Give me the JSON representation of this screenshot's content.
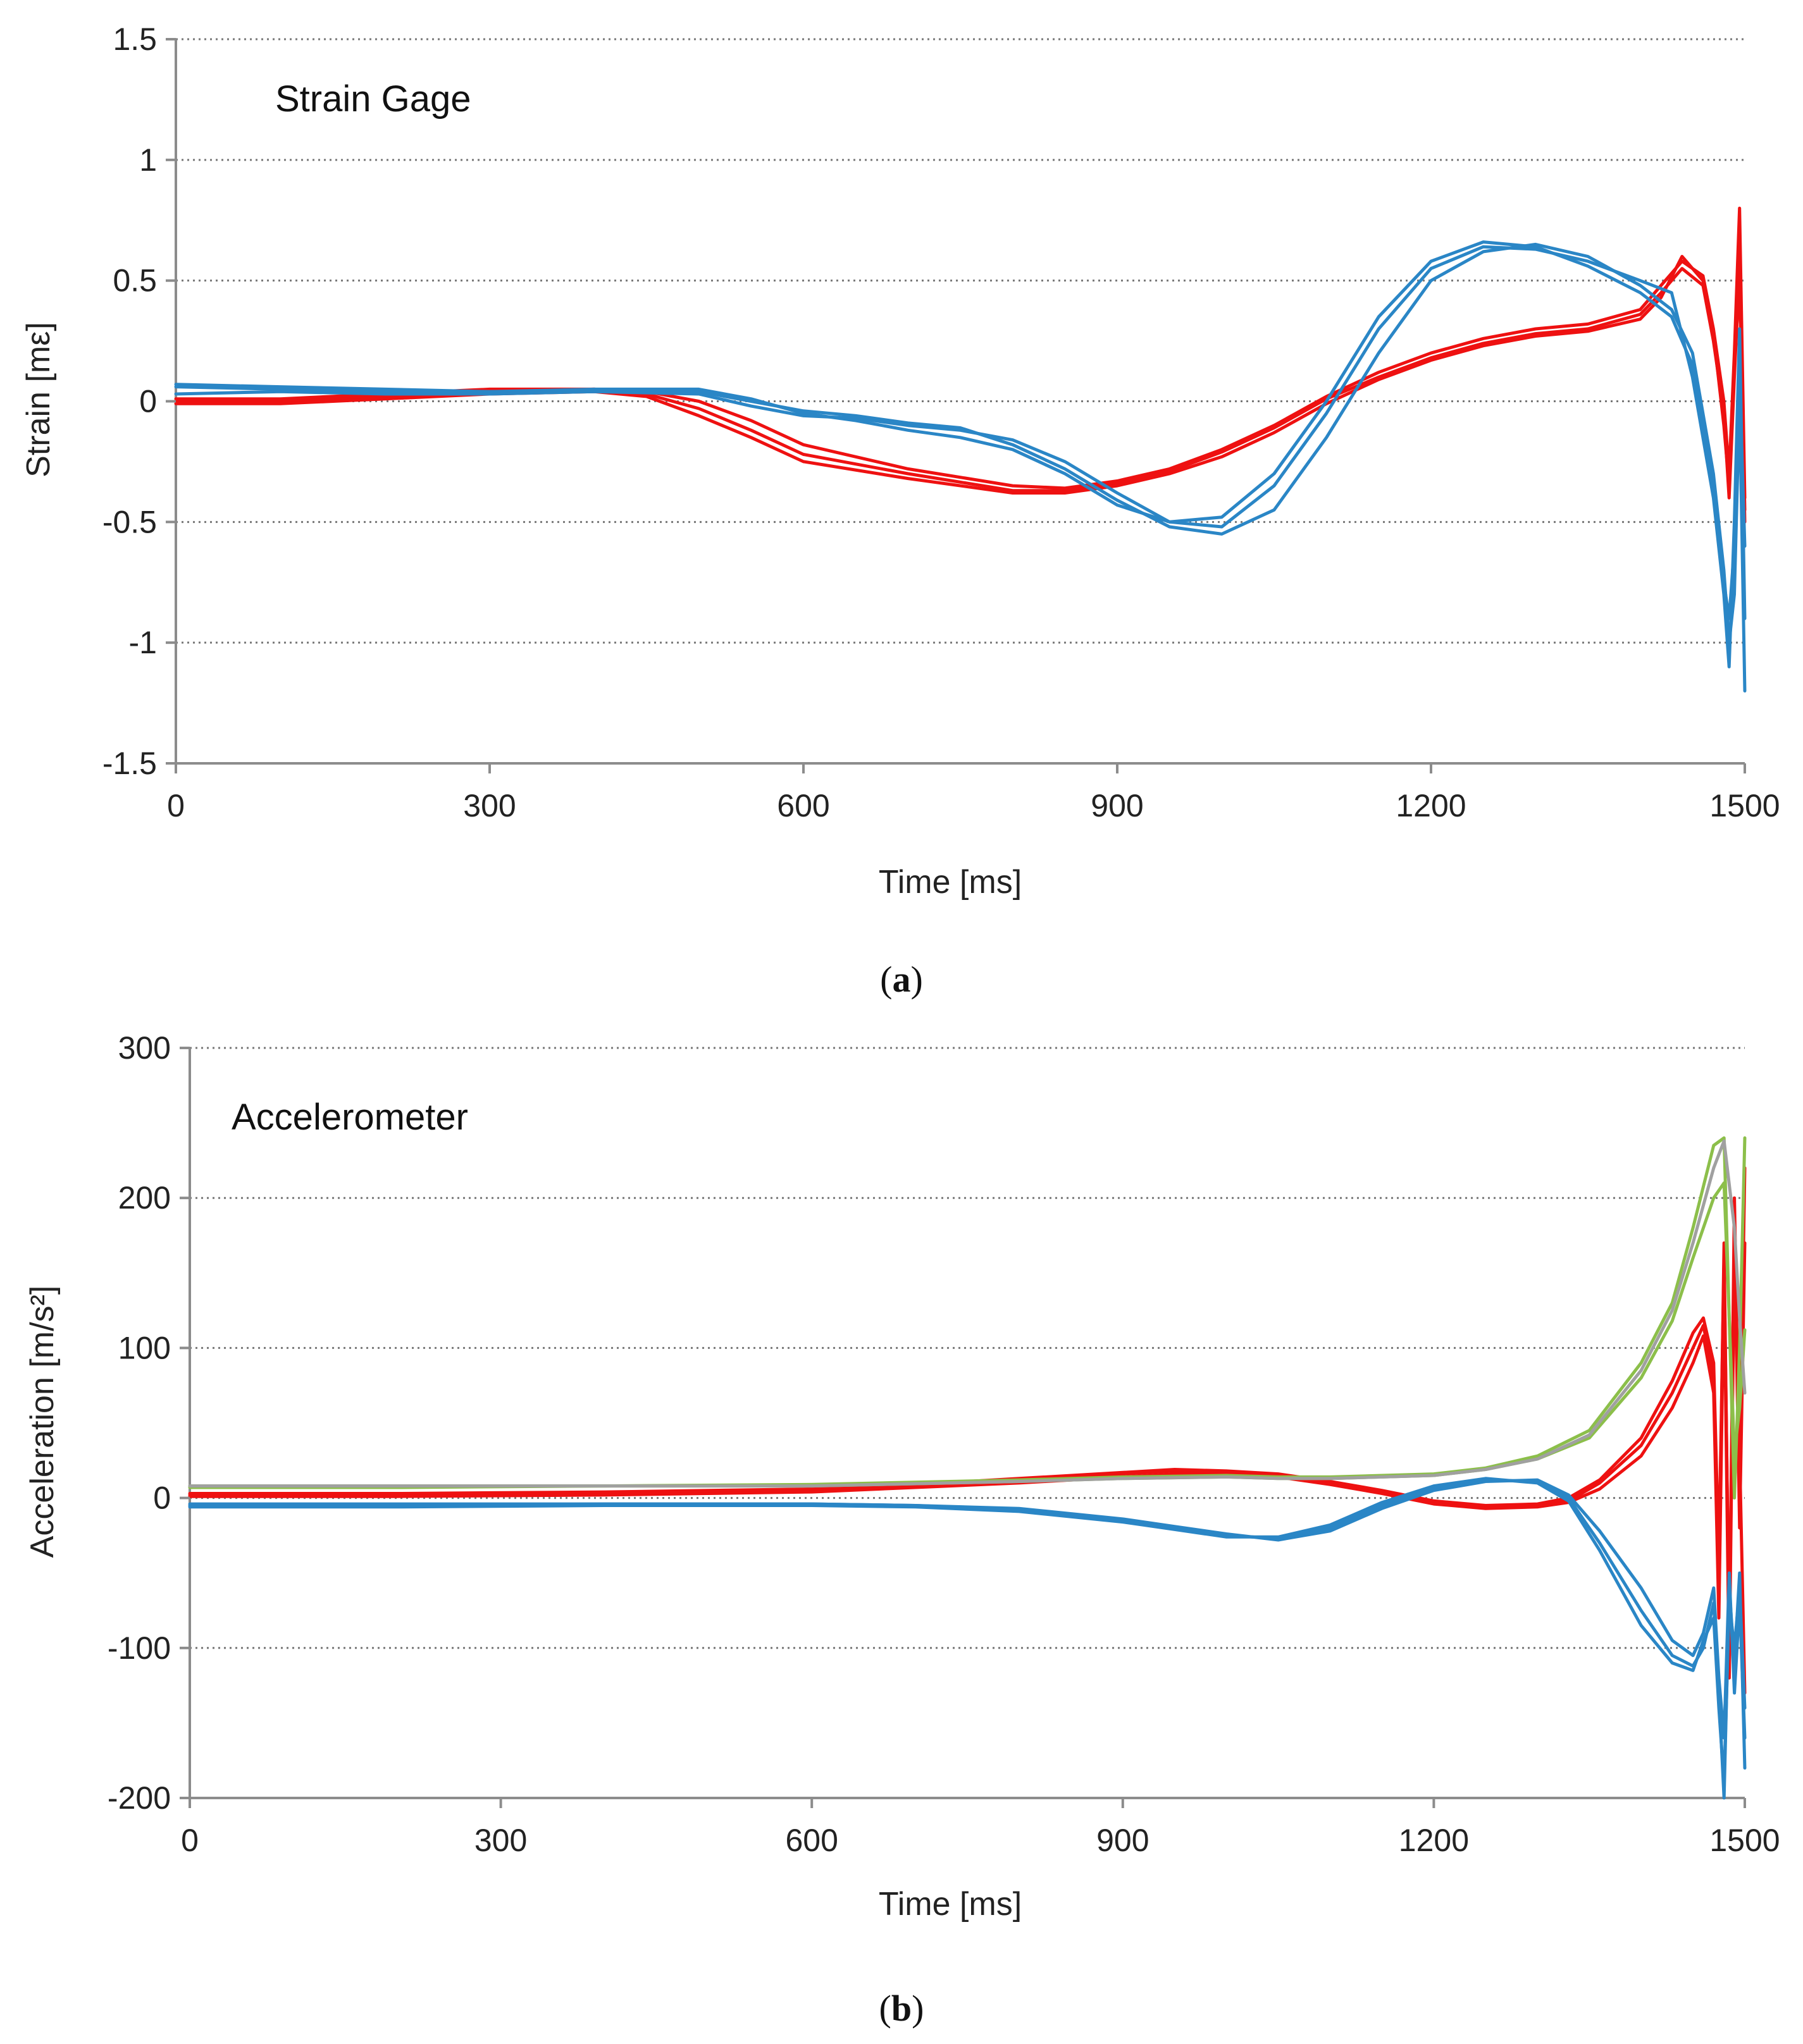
{
  "figure": {
    "panels": [
      {
        "label_open": "(",
        "label_letter": "a",
        "label_close": ")"
      },
      {
        "label_open": "(",
        "label_letter": "b",
        "label_close": ")"
      }
    ]
  },
  "colors": {
    "red": "#ee1111",
    "blue": "#2a86c6",
    "green": "#8cbf4a",
    "gray": "#a0a0a0",
    "axis": "#8c8c8c",
    "grid": "#777777"
  },
  "chart_data": [
    {
      "type": "line",
      "title": "Strain Gage",
      "xlabel": "Time [ms]",
      "ylabel": "Strain [mε]",
      "xlim": [
        0,
        1500
      ],
      "ylim": [
        -1.5,
        1.5
      ],
      "xticks": [
        0,
        300,
        600,
        900,
        1200,
        1500
      ],
      "xtick_labels": [
        "0",
        "300",
        "600",
        "900",
        "1200",
        "1500"
      ],
      "yticks": [
        1.5,
        1,
        0.5,
        0,
        -0.5,
        -1,
        -1.5
      ],
      "ytick_labels": [
        "1.5",
        "1",
        "0.5",
        "0",
        "-0.5",
        "-1",
        "-1.5"
      ],
      "grid": true,
      "series": [
        {
          "name": "red-1",
          "color": "red",
          "x": [
            0,
            100,
            200,
            300,
            400,
            450,
            500,
            550,
            600,
            700,
            800,
            850,
            900,
            950,
            1000,
            1050,
            1100,
            1150,
            1200,
            1250,
            1300,
            1350,
            1400,
            1420,
            1440,
            1460,
            1470,
            1480,
            1485,
            1490,
            1495,
            1500
          ],
          "y": [
            0,
            0,
            0.02,
            0.04,
            0.05,
            0.04,
            0,
            -0.08,
            -0.18,
            -0.28,
            -0.35,
            -0.36,
            -0.33,
            -0.28,
            -0.2,
            -0.1,
            0.02,
            0.12,
            0.2,
            0.26,
            0.3,
            0.32,
            0.38,
            0.48,
            0.58,
            0.52,
            0.3,
            0,
            -0.3,
            0.2,
            0.8,
            -0.4
          ]
        },
        {
          "name": "red-2",
          "color": "red",
          "x": [
            0,
            100,
            200,
            300,
            400,
            450,
            500,
            550,
            600,
            700,
            800,
            850,
            900,
            950,
            1000,
            1050,
            1100,
            1150,
            1200,
            1250,
            1300,
            1350,
            1400,
            1420,
            1440,
            1460,
            1470,
            1480,
            1485,
            1490,
            1495,
            1500
          ],
          "y": [
            0.01,
            0.01,
            0.03,
            0.05,
            0.05,
            0.03,
            -0.03,
            -0.12,
            -0.22,
            -0.3,
            -0.37,
            -0.37,
            -0.34,
            -0.29,
            -0.21,
            -0.11,
            0.01,
            0.1,
            0.18,
            0.24,
            0.28,
            0.3,
            0.36,
            0.45,
            0.55,
            0.48,
            0.25,
            -0.05,
            -0.4,
            0.1,
            0.55,
            -0.45
          ]
        },
        {
          "name": "red-3",
          "color": "red",
          "x": [
            0,
            100,
            200,
            300,
            400,
            450,
            500,
            550,
            600,
            700,
            800,
            850,
            900,
            950,
            1000,
            1050,
            1100,
            1150,
            1200,
            1250,
            1300,
            1350,
            1400,
            1420,
            1440,
            1460,
            1470,
            1480,
            1485,
            1490,
            1495,
            1500
          ],
          "y": [
            -0.01,
            -0.01,
            0.01,
            0.03,
            0.04,
            0.02,
            -0.06,
            -0.15,
            -0.25,
            -0.32,
            -0.38,
            -0.38,
            -0.35,
            -0.3,
            -0.23,
            -0.13,
            -0.01,
            0.09,
            0.17,
            0.23,
            0.27,
            0.29,
            0.34,
            0.43,
            0.6,
            0.5,
            0.28,
            -0.1,
            -0.35,
            0.15,
            0.5,
            -0.5
          ]
        },
        {
          "name": "blue-1",
          "color": "blue",
          "x": [
            0,
            100,
            200,
            300,
            400,
            500,
            550,
            600,
            650,
            700,
            750,
            800,
            850,
            900,
            950,
            1000,
            1050,
            1100,
            1150,
            1200,
            1250,
            1300,
            1350,
            1400,
            1430,
            1450,
            1470,
            1480,
            1485,
            1490,
            1495,
            1500
          ],
          "y": [
            0.06,
            0.05,
            0.04,
            0.04,
            0.04,
            0.03,
            -0.02,
            -0.06,
            -0.07,
            -0.1,
            -0.12,
            -0.16,
            -0.25,
            -0.38,
            -0.5,
            -0.52,
            -0.35,
            -0.05,
            0.3,
            0.55,
            0.64,
            0.63,
            0.58,
            0.5,
            0.45,
            0.1,
            -0.4,
            -0.8,
            -1.1,
            -0.5,
            0.3,
            -0.9
          ]
        },
        {
          "name": "blue-2",
          "color": "blue",
          "x": [
            0,
            100,
            200,
            300,
            400,
            500,
            550,
            600,
            650,
            700,
            750,
            800,
            850,
            900,
            950,
            1000,
            1050,
            1100,
            1150,
            1200,
            1250,
            1300,
            1350,
            1400,
            1430,
            1450,
            1470,
            1480,
            1485,
            1490,
            1495,
            1500
          ],
          "y": [
            0.03,
            0.04,
            0.03,
            0.03,
            0.04,
            0.04,
            0,
            -0.04,
            -0.06,
            -0.09,
            -0.11,
            -0.18,
            -0.28,
            -0.41,
            -0.52,
            -0.55,
            -0.45,
            -0.15,
            0.2,
            0.5,
            0.62,
            0.65,
            0.6,
            0.48,
            0.38,
            0.2,
            -0.3,
            -0.7,
            -1.0,
            -0.8,
            0,
            -1.2
          ]
        },
        {
          "name": "blue-3",
          "color": "blue",
          "x": [
            0,
            100,
            200,
            300,
            400,
            500,
            550,
            600,
            650,
            700,
            750,
            800,
            850,
            900,
            950,
            1000,
            1050,
            1100,
            1150,
            1200,
            1250,
            1300,
            1350,
            1400,
            1430,
            1450,
            1470,
            1480,
            1485,
            1490,
            1495,
            1500
          ],
          "y": [
            0.07,
            0.06,
            0.05,
            0.04,
            0.05,
            0.05,
            0.01,
            -0.05,
            -0.08,
            -0.12,
            -0.15,
            -0.2,
            -0.3,
            -0.43,
            -0.5,
            -0.48,
            -0.3,
            0,
            0.35,
            0.58,
            0.66,
            0.64,
            0.56,
            0.45,
            0.35,
            0.15,
            -0.35,
            -0.75,
            -0.9,
            -0.6,
            0.1,
            -0.6
          ]
        }
      ]
    },
    {
      "type": "line",
      "title": "Accelerometer",
      "xlabel": "Time [ms]",
      "ylabel": "Acceleration [m/s²]",
      "xlim": [
        0,
        1500
      ],
      "ylim": [
        -200,
        300
      ],
      "xticks": [
        0,
        300,
        600,
        900,
        1200,
        1500
      ],
      "xtick_labels": [
        "0",
        "300",
        "600",
        "900",
        "1200",
        "1500"
      ],
      "yticks": [
        300,
        200,
        100,
        0,
        -100,
        -200
      ],
      "ytick_labels": [
        "300",
        "200",
        "100",
        "0",
        "-100",
        "-200"
      ],
      "grid": true,
      "series": [
        {
          "name": "red-1",
          "color": "red",
          "x": [
            0,
            200,
            400,
            600,
            700,
            800,
            900,
            950,
            1000,
            1050,
            1100,
            1150,
            1200,
            1250,
            1300,
            1330,
            1360,
            1400,
            1430,
            1450,
            1460,
            1470,
            1475,
            1480,
            1485,
            1490,
            1495,
            1500
          ],
          "y": [
            2,
            2,
            3,
            5,
            8,
            12,
            16,
            18,
            17,
            15,
            10,
            4,
            -3,
            -6,
            -5,
            -2,
            10,
            35,
            70,
            100,
            115,
            80,
            -60,
            170,
            -100,
            200,
            10,
            220
          ]
        },
        {
          "name": "red-2",
          "color": "red",
          "x": [
            0,
            200,
            400,
            600,
            700,
            800,
            900,
            950,
            1000,
            1050,
            1100,
            1150,
            1200,
            1250,
            1300,
            1330,
            1360,
            1400,
            1430,
            1450,
            1460,
            1470,
            1475,
            1480,
            1485,
            1490,
            1495,
            1500
          ],
          "y": [
            1,
            1,
            2,
            4,
            7,
            10,
            14,
            16,
            16,
            14,
            9,
            3,
            -4,
            -7,
            -6,
            -3,
            6,
            28,
            60,
            90,
            108,
            70,
            -80,
            150,
            -120,
            180,
            -20,
            170
          ]
        },
        {
          "name": "red-3",
          "color": "red",
          "x": [
            0,
            200,
            400,
            600,
            700,
            800,
            900,
            950,
            1000,
            1050,
            1100,
            1150,
            1200,
            1250,
            1300,
            1330,
            1360,
            1400,
            1430,
            1450,
            1460,
            1470,
            1475,
            1480,
            1485,
            1490,
            1495,
            1500
          ],
          "y": [
            3,
            3,
            4,
            6,
            9,
            13,
            17,
            19,
            18,
            16,
            11,
            5,
            -2,
            -5,
            -4,
            0,
            12,
            40,
            78,
            110,
            120,
            90,
            -40,
            160,
            -90,
            150,
            30,
            -130
          ]
        },
        {
          "name": "green-1",
          "color": "green",
          "x": [
            0,
            200,
            400,
            600,
            800,
            900,
            1000,
            1050,
            1100,
            1200,
            1250,
            1300,
            1350,
            1400,
            1430,
            1450,
            1470,
            1480,
            1490,
            1495,
            1500
          ],
          "y": [
            8,
            8,
            8,
            9,
            12,
            14,
            15,
            14,
            14,
            16,
            20,
            28,
            45,
            90,
            130,
            180,
            235,
            240,
            0,
            100,
            240
          ]
        },
        {
          "name": "green-2",
          "color": "green",
          "x": [
            0,
            200,
            400,
            600,
            800,
            900,
            1000,
            1050,
            1100,
            1200,
            1250,
            1300,
            1350,
            1400,
            1430,
            1450,
            1470,
            1480,
            1490,
            1495,
            1500
          ],
          "y": [
            7,
            7,
            8,
            8,
            11,
            13,
            14,
            13,
            13,
            15,
            19,
            26,
            40,
            80,
            118,
            160,
            200,
            210,
            30,
            60,
            112
          ]
        },
        {
          "name": "gray-1",
          "color": "gray",
          "x": [
            0,
            200,
            400,
            600,
            800,
            900,
            1000,
            1050,
            1100,
            1200,
            1250,
            1300,
            1350,
            1400,
            1430,
            1450,
            1470,
            1480,
            1490,
            1495,
            1500
          ],
          "y": [
            8,
            8,
            8,
            8,
            11,
            13,
            14,
            13,
            13,
            15,
            19,
            26,
            42,
            85,
            125,
            170,
            220,
            238,
            180,
            120,
            70
          ]
        },
        {
          "name": "blue-1",
          "color": "blue",
          "x": [
            0,
            200,
            400,
            600,
            700,
            800,
            900,
            950,
            1000,
            1050,
            1100,
            1150,
            1200,
            1250,
            1300,
            1330,
            1360,
            1400,
            1430,
            1450,
            1460,
            1470,
            1475,
            1480,
            1485,
            1490,
            1495,
            1500
          ],
          "y": [
            -5,
            -5,
            -4,
            -4,
            -5,
            -8,
            -15,
            -20,
            -25,
            -27,
            -20,
            -5,
            7,
            12,
            11,
            0,
            -30,
            -75,
            -105,
            -112,
            -100,
            -70,
            -130,
            -200,
            -60,
            -110,
            -50,
            -180
          ]
        },
        {
          "name": "blue-2",
          "color": "blue",
          "x": [
            0,
            200,
            400,
            600,
            700,
            800,
            900,
            950,
            1000,
            1050,
            1100,
            1150,
            1200,
            1250,
            1300,
            1330,
            1360,
            1400,
            1430,
            1450,
            1460,
            1470,
            1475,
            1480,
            1485,
            1490,
            1495,
            1500
          ],
          "y": [
            -4,
            -4,
            -4,
            -4,
            -5,
            -7,
            -14,
            -19,
            -24,
            -28,
            -22,
            -7,
            5,
            11,
            12,
            2,
            -22,
            -60,
            -95,
            -105,
            -90,
            -60,
            -120,
            -160,
            -50,
            -130,
            -70,
            -160
          ]
        },
        {
          "name": "blue-3",
          "color": "blue",
          "x": [
            0,
            200,
            400,
            600,
            700,
            800,
            900,
            950,
            1000,
            1050,
            1100,
            1150,
            1200,
            1250,
            1300,
            1330,
            1360,
            1400,
            1430,
            1450,
            1460,
            1470,
            1475,
            1480,
            1485,
            1490,
            1495,
            1500
          ],
          "y": [
            -6,
            -6,
            -5,
            -5,
            -6,
            -9,
            -16,
            -21,
            -26,
            -26,
            -18,
            -3,
            8,
            13,
            10,
            -2,
            -35,
            -85,
            -110,
            -115,
            -95,
            -80,
            -140,
            -190,
            -70,
            -100,
            -60,
            -140
          ]
        }
      ]
    }
  ]
}
